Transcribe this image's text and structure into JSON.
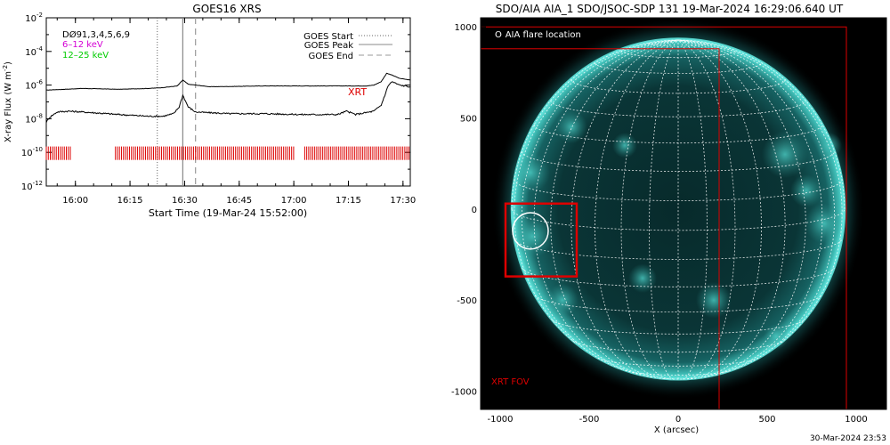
{
  "footer_timestamp": "30-Mar-2024 23:53",
  "chart_data": [
    {
      "type": "line",
      "title": "GOES16 XRS",
      "xlabel": "Start Time (19-Mar-24 15:52:00)",
      "ylabel": "X-ray Flux (W m",
      "ylabel_sup": "-2",
      "ylabel_close": ")",
      "x_unit": "minutes since 15:52:00",
      "xlim": [
        0,
        100
      ],
      "ylim_log10": [
        -12,
        -2
      ],
      "log_scale_y": true,
      "x_ticks": [
        {
          "label": "16:00",
          "t": 8
        },
        {
          "label": "16:15",
          "t": 23
        },
        {
          "label": "16:30",
          "t": 38
        },
        {
          "label": "16:45",
          "t": 53
        },
        {
          "label": "17:00",
          "t": 68
        },
        {
          "label": "17:15",
          "t": 83
        },
        {
          "label": "17:30",
          "t": 98
        }
      ],
      "y_ticks": [
        {
          "base": "10",
          "exp": "-2",
          "v": -2
        },
        {
          "base": "10",
          "exp": "-4",
          "v": -4
        },
        {
          "base": "10",
          "exp": "-6",
          "v": -6
        },
        {
          "base": "10",
          "exp": "-8",
          "v": -8
        },
        {
          "base": "10",
          "exp": "-10",
          "v": -10
        },
        {
          "base": "10",
          "exp": "-12",
          "v": -12
        }
      ],
      "legend_left": [
        {
          "text": "DØ91,3,4,5,6,9",
          "color": "#000000"
        },
        {
          "text": "6–12 keV",
          "color": "#d400d4"
        },
        {
          "text": "12–25 keV",
          "color": "#00cc00"
        }
      ],
      "legend_right": [
        {
          "text": "GOES Start",
          "style": "dotted"
        },
        {
          "text": "GOES Peak",
          "style": "solid"
        },
        {
          "text": "GOES End",
          "style": "dashed"
        }
      ],
      "goes_start_t": 30.5,
      "goes_peak_t": 37.5,
      "goes_end_t": 41,
      "xrt_label": "XRT",
      "xrt_color": "#dd0000",
      "xrt_coverage": [
        [
          0,
          7
        ],
        [
          19,
          68
        ],
        [
          71,
          100
        ]
      ],
      "series": [
        {
          "name": "",
          "color": "#000000",
          "t": [
            0,
            5,
            10,
            20,
            28,
            32,
            36,
            37.5,
            39,
            45,
            60,
            75,
            85,
            88,
            90,
            92,
            93.5,
            95,
            97,
            100
          ],
          "log10": [
            -6.3,
            -6.25,
            -6.2,
            -6.25,
            -6.2,
            -6.15,
            -6.05,
            -5.7,
            -5.95,
            -6.1,
            -6.05,
            -6.05,
            -6.05,
            -6.05,
            -6.0,
            -5.8,
            -5.3,
            -5.4,
            -5.6,
            -5.7
          ]
        },
        {
          "name": "",
          "color": "#000000",
          "t": [
            0,
            1,
            3,
            6,
            10,
            20,
            28,
            32,
            35,
            36.5,
            37.5,
            39,
            41,
            50,
            60,
            70,
            75,
            80,
            82.5,
            85,
            90,
            92,
            94,
            95,
            97,
            100
          ],
          "log10": [
            -8.2,
            -7.9,
            -7.6,
            -7.55,
            -7.6,
            -7.75,
            -7.85,
            -7.85,
            -7.7,
            -7.3,
            -6.6,
            -7.3,
            -7.6,
            -7.7,
            -7.7,
            -7.75,
            -7.75,
            -7.75,
            -7.55,
            -7.75,
            -7.55,
            -7.2,
            -6.0,
            -5.8,
            -6.0,
            -6.1
          ]
        }
      ]
    },
    {
      "type": "image",
      "title": "SDO/AIA AIA_1 SDO/JSOC-SDP 131 19-Mar-2024 16:29:06.640 UT",
      "xlabel": "X (arcsec)",
      "xlim": [
        -1110,
        1170
      ],
      "ylim": [
        -1100,
        1050
      ],
      "x_ticks": [
        {
          "label": "-1000",
          "v": -1000
        },
        {
          "label": "-500",
          "v": -500
        },
        {
          "label": "0",
          "v": 0
        },
        {
          "label": "500",
          "v": 500
        },
        {
          "label": "1000",
          "v": 1000
        }
      ],
      "y_ticks": [
        {
          "label": "1000",
          "v": 1000
        },
        {
          "label": "500",
          "v": 500
        },
        {
          "label": "0",
          "v": 0
        },
        {
          "label": "-500",
          "v": -500
        },
        {
          "label": "-1000",
          "v": -1000
        }
      ],
      "solar_radius_arcsec": 935,
      "disk_color": "#0c3a3b",
      "limb_color": "#5fe3dc",
      "grid_color": "#ffffff",
      "xrt_fov_color": "#dd0000",
      "xrt_fov_label": "XRT FOV",
      "xrt_fov_outer": [
        -1110,
        1000,
        945,
        -1100
      ],
      "xrt_fov_inner": [
        -1110,
        880,
        230,
        -1100
      ],
      "flare_box": [
        -970,
        30,
        -570,
        -370
      ],
      "flare_circle": {
        "x": -830,
        "y": -120,
        "r": 100
      },
      "aia_legend": "AIA flare location",
      "aia_legend_symbol": "O"
    }
  ]
}
